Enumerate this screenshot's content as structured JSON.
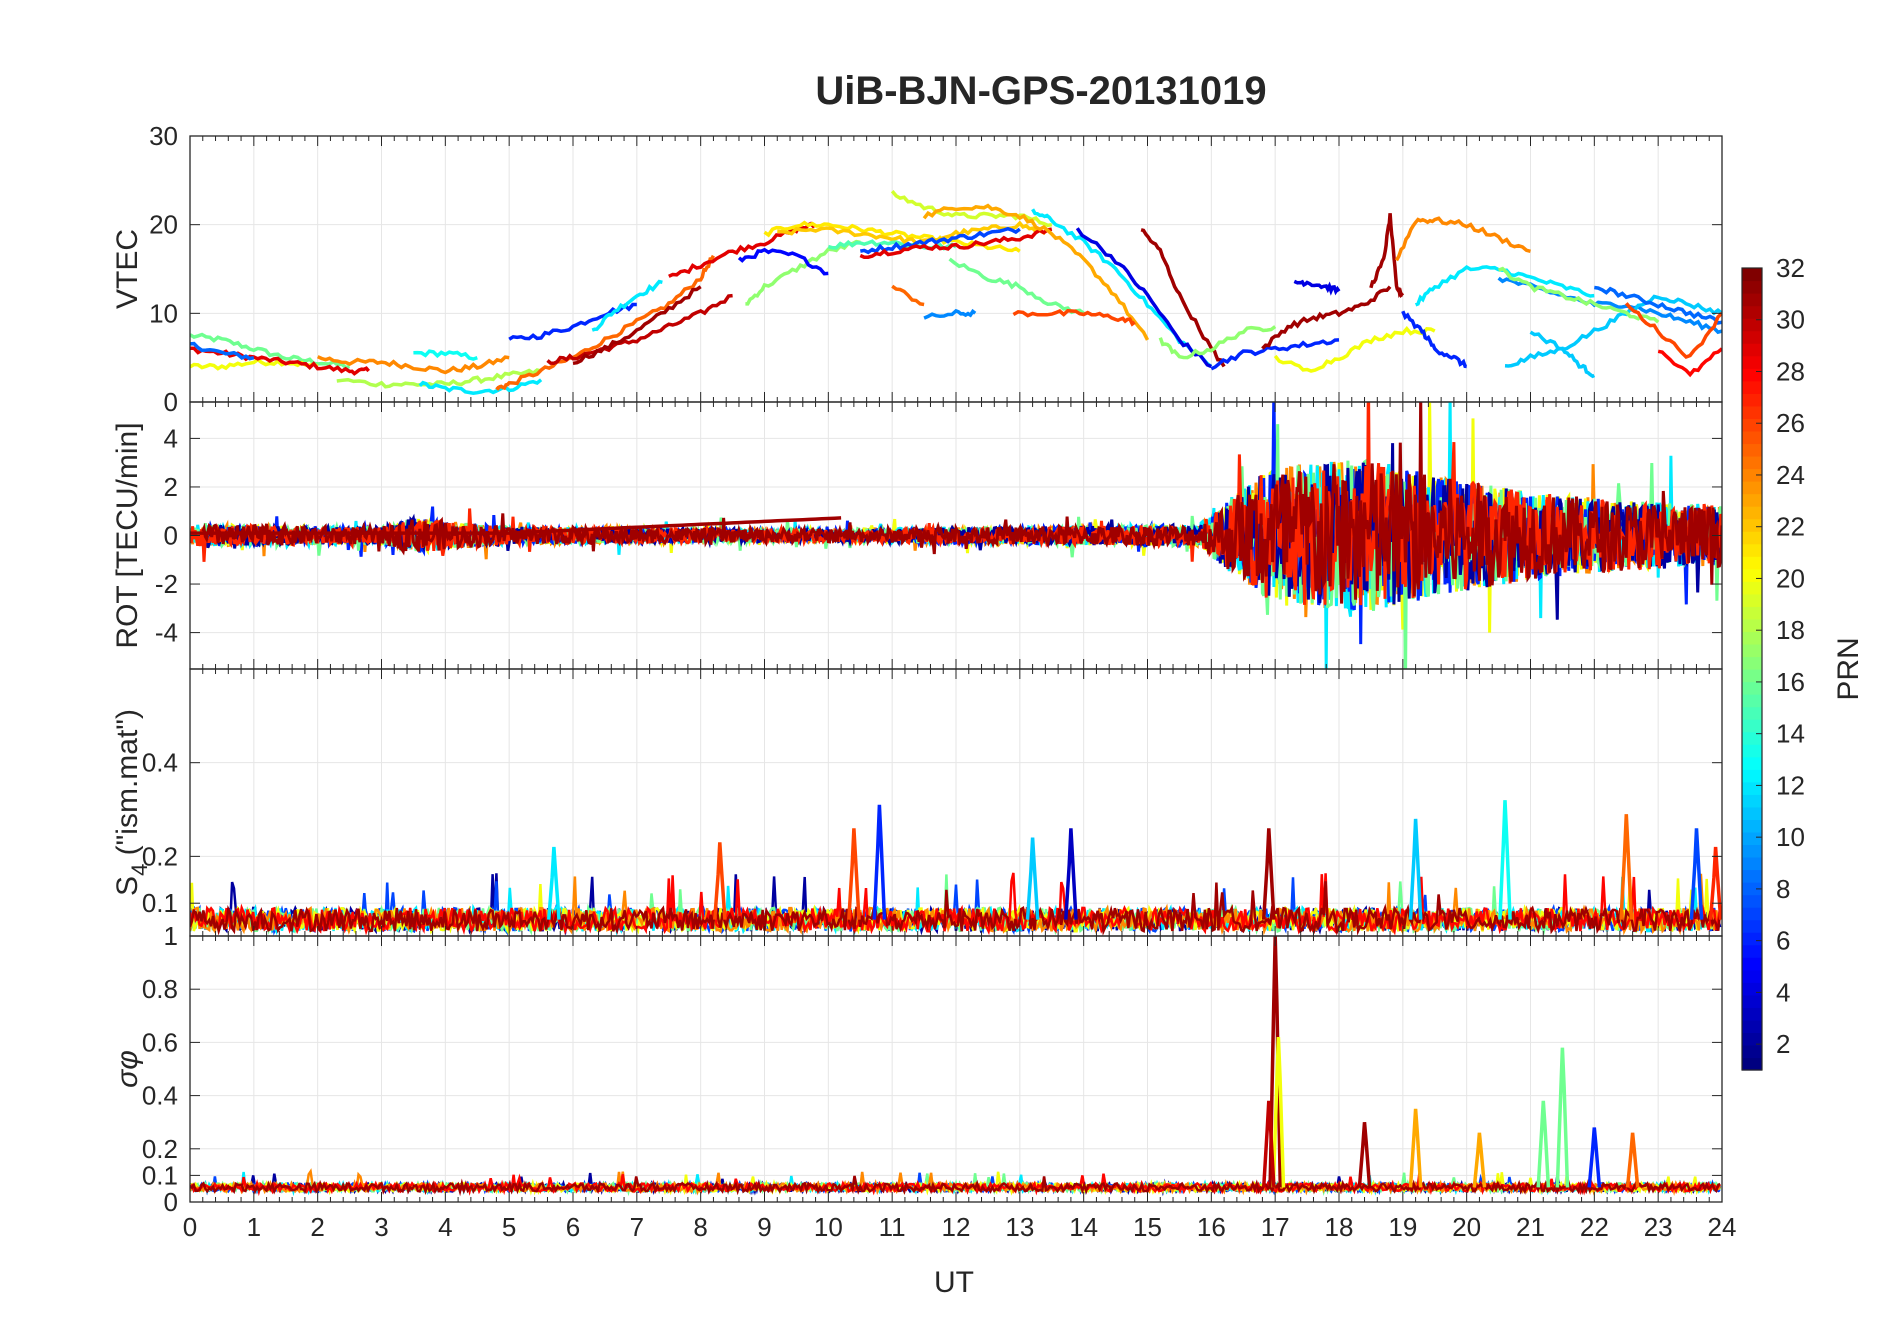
{
  "chart_data": {
    "title": "UiB-BJN-GPS-20131019",
    "xlabel": "UT",
    "xlim": [
      0,
      24
    ],
    "xticks": [
      "0",
      "1",
      "2",
      "3",
      "4",
      "5",
      "6",
      "7",
      "8",
      "9",
      "10",
      "11",
      "12",
      "13",
      "14",
      "15",
      "16",
      "17",
      "18",
      "19",
      "20",
      "21",
      "22",
      "23",
      "24"
    ],
    "grid": true,
    "colorbar": {
      "label": "PRN",
      "range": [
        1,
        32
      ],
      "colormap": "jet",
      "ticks": [
        "2",
        "4",
        "6",
        "8",
        "10",
        "12",
        "14",
        "16",
        "18",
        "20",
        "22",
        "24",
        "26",
        "28",
        "30",
        "32"
      ]
    },
    "panels": [
      {
        "type": "line",
        "ylabel": "VTEC",
        "ylim": [
          0,
          30
        ],
        "yticks": [
          "0",
          "10",
          "20",
          "30"
        ],
        "series": [
          {
            "prn": 16,
            "x": [
              0,
              0.5,
              1,
              1.5,
              2,
              2.5
            ],
            "y": [
              7.5,
              7,
              6,
              5,
              4.5,
              4
            ]
          },
          {
            "prn": 20,
            "x": [
              0,
              0.5,
              1,
              1.5,
              2
            ],
            "y": [
              4,
              4,
              4.5,
              4.5,
              4
            ]
          },
          {
            "prn": 29,
            "x": [
              0,
              0.5,
              1,
              1.5,
              2,
              2.5,
              2.8
            ],
            "y": [
              6,
              5.5,
              5,
              4.5,
              4,
              3.5,
              3.5
            ]
          },
          {
            "prn": 8,
            "x": [
              0,
              0.5,
              1
            ],
            "y": [
              6.5,
              5.5,
              5
            ]
          },
          {
            "prn": 24,
            "x": [
              2,
              2.5,
              3,
              3.5,
              4,
              4.5,
              5
            ],
            "y": [
              5,
              4.5,
              4.5,
              4,
              3.5,
              4,
              5
            ]
          },
          {
            "prn": 18,
            "x": [
              2.3,
              3,
              3.5,
              4,
              4.5,
              5,
              5.5
            ],
            "y": [
              2.5,
              2,
              2,
              2,
              2.5,
              3,
              3.5
            ]
          },
          {
            "prn": 13,
            "x": [
              3.5,
              4,
              4.5
            ],
            "y": [
              5.5,
              5.5,
              5
            ]
          },
          {
            "prn": 12,
            "x": [
              3.6,
              4,
              4.5,
              5,
              5.5
            ],
            "y": [
              2,
              1.5,
              1.2,
              1.5,
              2.5
            ]
          },
          {
            "prn": 25,
            "x": [
              4.8,
              5,
              5.5,
              6,
              6.5,
              7,
              7.5,
              8,
              8.2
            ],
            "y": [
              1.5,
              2,
              3.5,
              5,
              7,
              9,
              11,
              14,
              16.5
            ]
          },
          {
            "prn": 6,
            "x": [
              5,
              5.5,
              6,
              6.5,
              7
            ],
            "y": [
              7,
              7.5,
              8.5,
              10,
              11
            ]
          },
          {
            "prn": 12,
            "x": [
              6.3,
              6.6,
              7,
              7.4
            ],
            "y": [
              8,
              10,
              12,
              13.5
            ]
          },
          {
            "prn": 30,
            "x": [
              5.6,
              6,
              6.5,
              7,
              7.5,
              8,
              8.5
            ],
            "y": [
              4.5,
              5,
              6,
              7,
              8.5,
              10,
              12
            ]
          },
          {
            "prn": 31,
            "x": [
              6,
              6.5,
              7,
              7.5,
              8
            ],
            "y": [
              4.5,
              6,
              8,
              10.5,
              13
            ]
          },
          {
            "prn": 29,
            "x": [
              7.5,
              8,
              8.5,
              9,
              9.5,
              9.8
            ],
            "y": [
              14,
              15.5,
              17,
              18,
              19.5,
              20
            ]
          },
          {
            "prn": 17,
            "x": [
              8.7,
              9,
              9.5,
              10,
              10.5
            ],
            "y": [
              11,
              13,
              15,
              17,
              18
            ]
          },
          {
            "prn": 21,
            "x": [
              9,
              9.5,
              10,
              10.5,
              11,
              11.5,
              12,
              12.5,
              13
            ],
            "y": [
              19,
              20,
              20,
              19.5,
              19,
              18.5,
              18,
              17.5,
              17
            ]
          },
          {
            "prn": 22,
            "x": [
              9.2,
              9.8,
              10.5,
              11,
              11.5,
              12,
              12.5,
              13,
              13.4
            ],
            "y": [
              19,
              19.5,
              19,
              18.5,
              18,
              19,
              19.5,
              20,
              19
            ]
          },
          {
            "prn": 5,
            "x": [
              8.6,
              9,
              9.5,
              10
            ],
            "y": [
              16,
              17,
              16.5,
              14.5
            ]
          },
          {
            "prn": 15,
            "x": [
              10,
              10.5,
              11,
              11.5,
              12
            ],
            "y": [
              17.5,
              18,
              18,
              17.5,
              17.5
            ]
          },
          {
            "prn": 7,
            "x": [
              10.5,
              11,
              11.5,
              12,
              12.5,
              13
            ],
            "y": [
              17,
              17.5,
              18,
              18.5,
              19,
              19.5
            ]
          },
          {
            "prn": 29,
            "x": [
              10.5,
              11,
              11.5,
              12,
              12.5,
              13,
              13.5
            ],
            "y": [
              16.5,
              17,
              17.5,
              17.5,
              18,
              18.5,
              19.5
            ]
          },
          {
            "prn": 19,
            "x": [
              11,
              11.5,
              12,
              12.5,
              13,
              13.5
            ],
            "y": [
              23.5,
              22,
              21,
              21,
              21,
              20
            ]
          },
          {
            "prn": 23,
            "x": [
              11.5,
              12,
              12.5,
              13,
              13.5,
              14,
              14.5,
              15
            ],
            "y": [
              21,
              22,
              22,
              21,
              19,
              16,
              12,
              7
            ]
          },
          {
            "prn": 12,
            "x": [
              13.2,
              13.5,
              14,
              14.5,
              15,
              15.5,
              16
            ],
            "y": [
              21.5,
              20.5,
              18,
              15,
              11,
              7,
              4
            ]
          },
          {
            "prn": 4,
            "x": [
              13.9,
              14.5,
              15,
              15.5,
              16
            ],
            "y": [
              19.5,
              16,
              12,
              7,
              4
            ]
          },
          {
            "prn": 31,
            "x": [
              14.9,
              15.2,
              15.5,
              16,
              16.2
            ],
            "y": [
              19.5,
              17,
              12,
              6,
              4
            ]
          },
          {
            "prn": 16,
            "x": [
              11.9,
              12.5,
              13,
              13.5,
              14
            ],
            "y": [
              16,
              14,
              13,
              11,
              10
            ]
          },
          {
            "prn": 26,
            "x": [
              12.9,
              13.5,
              14,
              14.5,
              14.8
            ],
            "y": [
              10,
              10,
              10,
              9.5,
              9
            ]
          },
          {
            "prn": 25,
            "x": [
              11,
              11.5
            ],
            "y": [
              13,
              11
            ]
          },
          {
            "prn": 9,
            "x": [
              11.5,
              12,
              12.3
            ],
            "y": [
              9.5,
              10,
              10
            ]
          },
          {
            "prn": 17,
            "x": [
              15.2,
              15.5,
              16,
              16.5,
              17
            ],
            "y": [
              7,
              5,
              6,
              8,
              8.5
            ]
          },
          {
            "prn": 6,
            "x": [
              16,
              16.5,
              17,
              17.5,
              18
            ],
            "y": [
              4,
              5.5,
              6,
              6.5,
              7
            ]
          },
          {
            "prn": 31,
            "x": [
              16.8,
              17.2,
              17.6,
              18,
              18.4,
              18.8
            ],
            "y": [
              6,
              8.5,
              9.5,
              10,
              11,
              13
            ]
          },
          {
            "prn": 20,
            "x": [
              17,
              17.5,
              18,
              18.5,
              19,
              19.5
            ],
            "y": [
              5,
              3.5,
              5,
              7,
              8,
              8
            ]
          },
          {
            "prn": 4,
            "x": [
              17.3,
              17.5,
              17.8,
              18
            ],
            "y": [
              13.5,
              13.5,
              13,
              12.5
            ]
          },
          {
            "prn": 31,
            "x": [
              18.5,
              18.7,
              18.8,
              18.9,
              19
            ],
            "y": [
              13,
              16,
              21,
              13,
              12
            ]
          },
          {
            "prn": 24,
            "x": [
              18.9,
              19.2,
              19.5,
              20,
              20.5,
              21
            ],
            "y": [
              16,
              20.5,
              20.5,
              20,
              18.5,
              17
            ]
          },
          {
            "prn": 12,
            "x": [
              19.2,
              19.5,
              20,
              20.5,
              21,
              21.5,
              22
            ],
            "y": [
              11,
              13,
              15,
              15,
              14,
              13,
              12
            ]
          },
          {
            "prn": 6,
            "x": [
              19,
              19.3,
              19.5,
              19.8,
              20
            ],
            "y": [
              10,
              8,
              6,
              5,
              4
            ]
          },
          {
            "prn": 9,
            "x": [
              20.5,
              21,
              21.5,
              22,
              22.5,
              23,
              23.5,
              24
            ],
            "y": [
              14,
              13,
              12,
              11,
              11,
              10,
              9,
              8
            ]
          },
          {
            "prn": 11,
            "x": [
              20.6,
              21,
              21.5,
              22,
              22.5,
              23,
              23.5,
              24
            ],
            "y": [
              4,
              5,
              6,
              8,
              10,
              12,
              11,
              10
            ]
          },
          {
            "prn": 11,
            "x": [
              21,
              21.5,
              21.8,
              22
            ],
            "y": [
              8,
              6,
              4,
              3
            ]
          },
          {
            "prn": 17,
            "x": [
              20.5,
              21,
              21.5,
              22,
              22.5,
              23
            ],
            "y": [
              15,
              13,
              12,
              11,
              10,
              9
            ]
          },
          {
            "prn": 8,
            "x": [
              22,
              22.5,
              23,
              23.5,
              24
            ],
            "y": [
              13,
              12,
              11,
              10,
              9
            ]
          },
          {
            "prn": 26,
            "x": [
              22.5,
              23,
              23.5,
              24
            ],
            "y": [
              11,
              8,
              5,
              10
            ]
          },
          {
            "prn": 28,
            "x": [
              23,
              23.5,
              24
            ],
            "y": [
              6,
              3,
              6
            ]
          }
        ]
      },
      {
        "type": "line",
        "ylabel": "ROT [TECU/min]",
        "ylim": [
          -5.5,
          5.5
        ],
        "yticks": [
          "-4",
          "-2",
          "0",
          "2",
          "4"
        ],
        "noise_amplitude": [
          {
            "x": 0,
            "a": 0.5
          },
          {
            "x": 3,
            "a": 0.4
          },
          {
            "x": 3.5,
            "a": 0.8
          },
          {
            "x": 5,
            "a": 0.4
          },
          {
            "x": 10,
            "a": 0.3
          },
          {
            "x": 15.8,
            "a": 0.5
          },
          {
            "x": 16.5,
            "a": 2.2
          },
          {
            "x": 17,
            "a": 3.2
          },
          {
            "x": 18.5,
            "a": 3.5
          },
          {
            "x": 19.5,
            "a": 2.8
          },
          {
            "x": 21,
            "a": 2.0
          },
          {
            "x": 22.5,
            "a": 1.6
          },
          {
            "x": 24,
            "a": 1.4
          }
        ]
      },
      {
        "type": "line",
        "ylabel": "S4 (\"ism.mat\")",
        "ylabel_main": "S",
        "ylabel_sub": "4",
        "ylabel_rest": " (\"ism.mat\")",
        "ylim": [
          0.03,
          0.6
        ],
        "yticks": [
          "0.1",
          "0.2",
          "0.4"
        ],
        "peaks": [
          {
            "x": 10.8,
            "y": 0.31,
            "prn": 6
          },
          {
            "x": 10.4,
            "y": 0.26,
            "prn": 26
          },
          {
            "x": 8.3,
            "y": 0.23,
            "prn": 26
          },
          {
            "x": 5.7,
            "y": 0.22,
            "prn": 12
          },
          {
            "x": 13.8,
            "y": 0.26,
            "prn": 3
          },
          {
            "x": 13.2,
            "y": 0.24,
            "prn": 11
          },
          {
            "x": 16.9,
            "y": 0.26,
            "prn": 31
          },
          {
            "x": 19.2,
            "y": 0.28,
            "prn": 11
          },
          {
            "x": 20.6,
            "y": 0.32,
            "prn": 13
          },
          {
            "x": 22.5,
            "y": 0.29,
            "prn": 25
          },
          {
            "x": 23.6,
            "y": 0.26,
            "prn": 7
          },
          {
            "x": 23.9,
            "y": 0.22,
            "prn": 27
          }
        ]
      },
      {
        "type": "line",
        "ylabel": "σφ",
        "ylim": [
          0,
          1
        ],
        "yticks": [
          "0",
          "0.1",
          "0.2",
          "0.4",
          "0.6",
          "0.8",
          "1"
        ],
        "peaks": [
          {
            "x": 17.0,
            "y": 1.0,
            "prn": 31
          },
          {
            "x": 17.05,
            "y": 0.62,
            "prn": 20
          },
          {
            "x": 16.9,
            "y": 0.38,
            "prn": 30
          },
          {
            "x": 21.5,
            "y": 0.58,
            "prn": 16
          },
          {
            "x": 21.2,
            "y": 0.38,
            "prn": 16
          },
          {
            "x": 19.2,
            "y": 0.35,
            "prn": 23
          },
          {
            "x": 22.0,
            "y": 0.28,
            "prn": 6
          },
          {
            "x": 22.6,
            "y": 0.26,
            "prn": 25
          },
          {
            "x": 18.4,
            "y": 0.3,
            "prn": 31
          },
          {
            "x": 20.2,
            "y": 0.26,
            "prn": 23
          }
        ]
      }
    ]
  }
}
